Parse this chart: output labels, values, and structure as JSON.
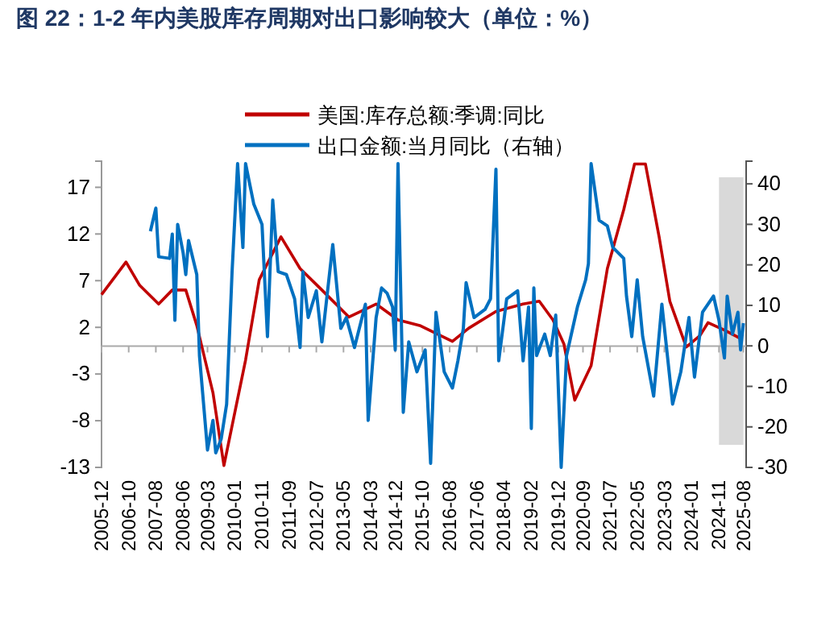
{
  "chart_data": {
    "type": "line",
    "title": "图 22：1-2 年内美股库存周期对出口影响较大（单位：%）",
    "legend": "top",
    "grid": false,
    "xlim": [
      "2005-12",
      "2025-09"
    ],
    "xticks": [
      "2005-12",
      "2006-10",
      "2007-08",
      "2008-06",
      "2009-03",
      "2010-01",
      "2010-11",
      "2011-09",
      "2012-07",
      "2013-05",
      "2014-03",
      "2014-12",
      "2015-10",
      "2016-08",
      "2017-06",
      "2018-04",
      "2019-02",
      "2019-12",
      "2020-09",
      "2021-07",
      "2022-05",
      "2023-03",
      "2024-01",
      "2024-11",
      "2025-08"
    ],
    "ylim": [
      -13,
      19.8
    ],
    "yticks": [
      -13,
      -8,
      -3,
      2,
      7,
      12,
      17
    ],
    "y2lim": [
      -30,
      45.6
    ],
    "y2ticks": [
      -30,
      -20,
      -10,
      0,
      10,
      20,
      30,
      40
    ],
    "ref_lines": [
      {
        "axis": "y",
        "value": 0,
        "color": "#aaaaaa"
      }
    ],
    "bands": [
      {
        "axis": "x",
        "from": "2024-11",
        "to": "2025-08",
        "color": "#d9d9d9"
      }
    ],
    "series": [
      {
        "name": "美国:库存总额:季调:同比",
        "color": "#c00000",
        "x": [
          "2005-12",
          "2006-09",
          "2007-02",
          "2007-09",
          "2008-02",
          "2008-07",
          "2008-11",
          "2009-05",
          "2009-09",
          "2010-05",
          "2010-10",
          "2011-06",
          "2012-01",
          "2012-09",
          "2013-07",
          "2014-05",
          "2015-01",
          "2015-09",
          "2016-09",
          "2017-03",
          "2018-01",
          "2018-11",
          "2019-05",
          "2019-10",
          "2020-02",
          "2020-06",
          "2020-12",
          "2021-06",
          "2021-12",
          "2022-04",
          "2022-08",
          "2023-01",
          "2023-05",
          "2023-11",
          "2024-04",
          "2024-07",
          "2025-01",
          "2025-07"
        ],
        "values": [
          5.5,
          9,
          6.5,
          4.5,
          6,
          6,
          2.2,
          -5,
          -12.8,
          -1.5,
          7.1,
          11.7,
          8.3,
          6,
          3.1,
          4.5,
          2.8,
          2.2,
          0.5,
          1.9,
          3.7,
          4.5,
          4.8,
          2.8,
          0.2,
          -5.8,
          -2.1,
          8.3,
          14.6,
          19.5,
          19.5,
          11.7,
          4.8,
          -0.1,
          1.1,
          2.5,
          1.7,
          0.8
        ]
      },
      {
        "name": "出口金额:当月同比（右轴）",
        "color": "#0070c0",
        "axis": "y2",
        "x": [
          "2007-06",
          "2007-08",
          "2007-09",
          "2008-01",
          "2008-02",
          "2008-03",
          "2008-04",
          "2008-06",
          "2008-07",
          "2008-08",
          "2008-11",
          "2008-12",
          "2009-03",
          "2009-05",
          "2009-06",
          "2009-08",
          "2009-10",
          "2009-12",
          "2010-02",
          "2010-04",
          "2010-05",
          "2010-08",
          "2010-11",
          "2010-12",
          "2011-01",
          "2011-03",
          "2011-05",
          "2011-08",
          "2011-11",
          "2012-01",
          "2012-02",
          "2012-04",
          "2012-07",
          "2012-09",
          "2013-01",
          "2013-04",
          "2013-06",
          "2013-09",
          "2014-01",
          "2014-02",
          "2014-05",
          "2014-07",
          "2014-09",
          "2014-11",
          "2014-12",
          "2015-01",
          "2015-03",
          "2015-05",
          "2015-08",
          "2015-11",
          "2016-01",
          "2016-03",
          "2016-06",
          "2016-09",
          "2016-11",
          "2017-01",
          "2017-02",
          "2017-05",
          "2017-09",
          "2017-11",
          "2018-01",
          "2018-02",
          "2018-05",
          "2018-09",
          "2018-11",
          "2019-01",
          "2019-02",
          "2019-03",
          "2019-04",
          "2019-07",
          "2019-09",
          "2019-11",
          "2020-01",
          "2020-03",
          "2020-07",
          "2020-10",
          "2020-11",
          "2020-12",
          "2021-03",
          "2021-06",
          "2021-08",
          "2021-12",
          "2022-01",
          "2022-03",
          "2022-05",
          "2022-07",
          "2022-11",
          "2023-02",
          "2023-06",
          "2023-09",
          "2023-12",
          "2024-02",
          "2024-05",
          "2024-09",
          "2024-11",
          "2025-01",
          "2025-02",
          "2025-04",
          "2025-06",
          "2025-07",
          "2025-08"
        ],
        "values": [
          28.3,
          34,
          22,
          21.6,
          27.6,
          6.3,
          30,
          23,
          17.6,
          26,
          17.6,
          -2.4,
          -25.7,
          -18.4,
          -26.4,
          -23,
          -14.4,
          18.3,
          45,
          24.3,
          45,
          35,
          30,
          16.3,
          2.3,
          36,
          18.3,
          17.6,
          11.6,
          -0.4,
          18.3,
          7,
          13.6,
          1,
          25,
          4.3,
          7,
          -0.4,
          10.3,
          -18.4,
          7,
          14.3,
          13,
          9.6,
          -1,
          45,
          -16.4,
          1,
          -6.4,
          -1,
          -29,
          8.3,
          -6.4,
          -10.4,
          -3.7,
          4.3,
          15.6,
          7,
          9,
          11.6,
          43.6,
          -3.7,
          11.6,
          13.6,
          -3.7,
          9.6,
          -20.4,
          14.3,
          -2.4,
          2.9,
          -2.4,
          7.6,
          -30,
          -2.4,
          9.6,
          16.3,
          20.3,
          45,
          31,
          29.6,
          24.3,
          21.6,
          12.3,
          2.3,
          16.3,
          2.3,
          -12.4,
          10.3,
          -14.4,
          -6.4,
          7,
          -7.7,
          8.3,
          12.3,
          6.3,
          -3,
          12.3,
          2.9,
          8.3,
          -1,
          5.6
        ]
      }
    ]
  }
}
